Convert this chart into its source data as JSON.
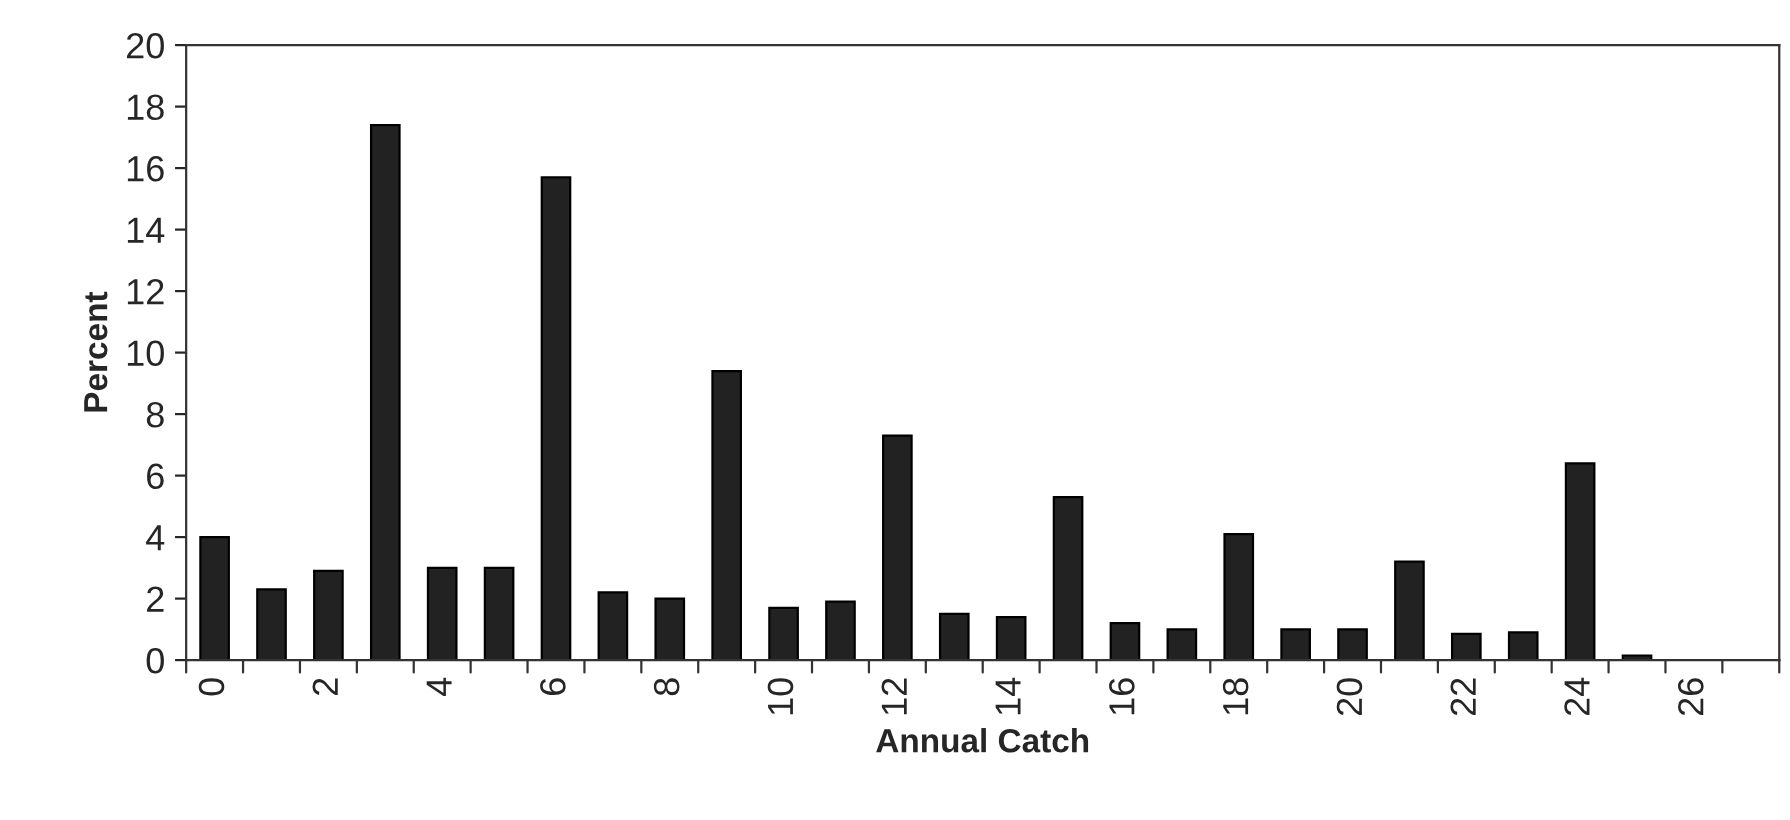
{
  "chart_data": {
    "type": "bar",
    "xlabel": "Annual Catch",
    "ylabel": "Percent",
    "categories": [
      "0",
      null,
      "2",
      null,
      "4",
      null,
      "6",
      null,
      "8",
      null,
      "10",
      null,
      "12",
      null,
      "14",
      null,
      "16",
      null,
      "18",
      null,
      "20",
      null,
      "22",
      null,
      "24",
      null,
      "26",
      null
    ],
    "values": [
      4.0,
      2.3,
      2.9,
      17.4,
      3.0,
      3.0,
      15.7,
      2.2,
      2.0,
      9.4,
      1.7,
      1.9,
      7.3,
      1.5,
      1.4,
      5.3,
      1.2,
      1.0,
      4.1,
      1.0,
      1.0,
      3.2,
      0.85,
      0.9,
      6.4,
      0.15,
      null,
      null
    ],
    "color": "#222222",
    "ylim": [
      0,
      20
    ],
    "yticks": [
      0,
      2,
      4,
      6,
      8,
      10,
      12,
      14,
      16,
      18,
      20
    ],
    "grid": false
  }
}
